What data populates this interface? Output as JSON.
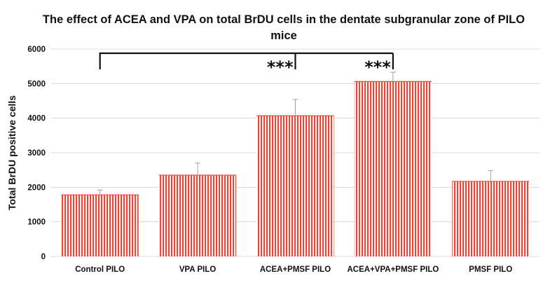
{
  "chart_data": {
    "type": "bar",
    "title_lines": [
      "The effect of ACEA and VPA on total BrDU cells in the dentate subgranular zone of PILO",
      "mice"
    ],
    "xlabel": "",
    "ylabel": "Total BrDU positive cells",
    "categories": [
      "Control PILO",
      "VPA PILO",
      "ACEA+PMSF PILO",
      "ACEA+VPA+PMSF PILO",
      "PMSF PILO"
    ],
    "values": [
      1780,
      2350,
      4070,
      5060,
      2170
    ],
    "error_upper": [
      140,
      350,
      470,
      270,
      310
    ],
    "ylim": [
      0,
      6000
    ],
    "yticks": [
      0,
      1000,
      2000,
      3000,
      4000,
      5000,
      6000
    ],
    "grid": true,
    "legend": "none",
    "bar_color": "#e8473a",
    "bar_stripe_color": "#ffffff",
    "significance": [
      {
        "from": 0,
        "to": 2,
        "label": "***"
      },
      {
        "from": 0,
        "to": 3,
        "label": "***"
      }
    ]
  }
}
